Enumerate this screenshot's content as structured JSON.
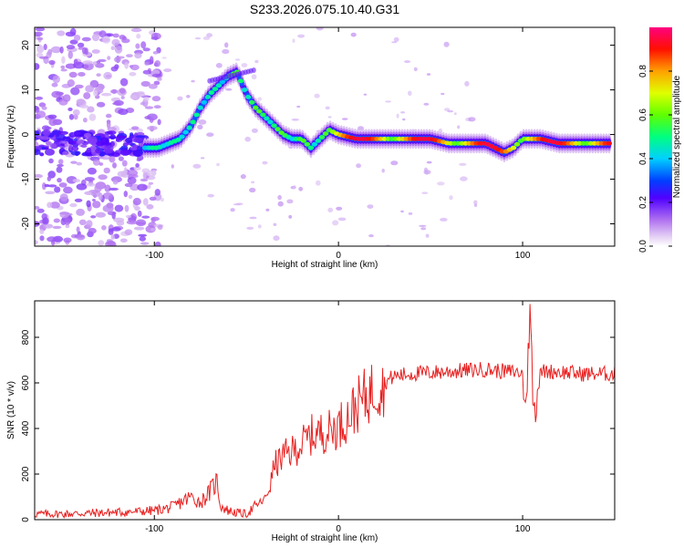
{
  "title": "S233.2026.075.10.40.G31",
  "chart_data": [
    {
      "type": "heatmap",
      "xlabel": "Height of straight line (km)",
      "ylabel": "Frequency (Hz)",
      "xlim": [
        -165,
        150
      ],
      "ylim": [
        -25,
        24
      ],
      "xticks": [
        -100,
        0,
        100
      ],
      "yticks": [
        -20,
        -10,
        0,
        10,
        20
      ],
      "colorbar": {
        "label": "Normalized spectral amplitude",
        "range": [
          0,
          1
        ],
        "ticks": [
          0.0,
          0.2,
          0.4,
          0.6,
          0.8
        ],
        "tick_labels": [
          "0.0",
          "0.2",
          "0.4",
          "0.6",
          "0.8"
        ],
        "colors": [
          "#ffffff",
          "#d9b8f0",
          "#8000ff",
          "#0000ff",
          "#00c0ff",
          "#00ff80",
          "#40ff00",
          "#ffff00",
          "#ff8000",
          "#ff0000",
          "#ff0080"
        ]
      },
      "ridge": {
        "name": "dominant frequency",
        "x": [
          -105,
          -98,
          -92,
          -86,
          -80,
          -75,
          -70,
          -65,
          -60,
          -55,
          -50,
          -45,
          -40,
          -35,
          -30,
          -25,
          -20,
          -15,
          -10,
          -5,
          0,
          10,
          20,
          30,
          40,
          50,
          60,
          70,
          80,
          85,
          90,
          95,
          100,
          110,
          120,
          130,
          140,
          148
        ],
        "y": [
          -3,
          -3,
          -2,
          -1,
          2,
          6,
          9,
          11,
          13,
          14,
          9,
          6,
          4,
          2,
          0,
          -1,
          -1,
          -3,
          -1,
          1,
          0,
          -1,
          -1,
          -1,
          -1,
          -1,
          -2,
          -2,
          -2,
          -3,
          -4,
          -3,
          -1,
          -1,
          -2,
          -2,
          -2,
          -2
        ]
      },
      "noise_region": {
        "x_range": [
          -165,
          -105
        ],
        "band_center_hz": -2
      }
    },
    {
      "type": "line",
      "xlabel": "Height of straight line (km)",
      "ylabel": "SNR (10 * v/v)",
      "xlim": [
        -165,
        150
      ],
      "ylim": [
        0,
        960
      ],
      "xticks": [
        -100,
        0,
        100
      ],
      "yticks": [
        0,
        200,
        400,
        600,
        800
      ],
      "color": "#e82020",
      "series": [
        {
          "name": "SNR",
          "x": [
            -165,
            -150,
            -130,
            -110,
            -100,
            -90,
            -85,
            -80,
            -75,
            -70,
            -66,
            -64,
            -60,
            -55,
            -50,
            -45,
            -40,
            -37,
            -35,
            -33,
            -30,
            -25,
            -20,
            -15,
            -10,
            -5,
            0,
            5,
            10,
            15,
            20,
            25,
            30,
            40,
            50,
            60,
            70,
            80,
            90,
            95,
            100,
            102,
            104,
            106,
            110,
            120,
            130,
            140,
            150
          ],
          "y": [
            25,
            25,
            30,
            35,
            40,
            55,
            80,
            100,
            75,
            120,
            170,
            60,
            40,
            30,
            25,
            60,
            90,
            150,
            240,
            250,
            280,
            300,
            330,
            370,
            380,
            390,
            410,
            450,
            500,
            540,
            580,
            600,
            630,
            640,
            645,
            650,
            655,
            660,
            650,
            650,
            640,
            500,
            960,
            480,
            650,
            650,
            640,
            640,
            640
          ]
        }
      ]
    }
  ]
}
